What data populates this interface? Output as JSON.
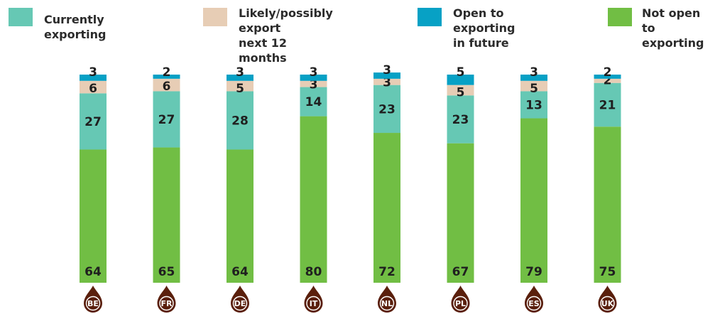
{
  "legend": [
    {
      "label": "Currently exporting",
      "color": "#66c8b4"
    },
    {
      "label": "Likely/possibly export\nnext 12 months",
      "color": "#e7cdb5"
    },
    {
      "label": "Open to exporting\nin future",
      "color": "#07a1c5"
    },
    {
      "label": "Not open\nto exporting",
      "color": "#71be44"
    }
  ],
  "chart_data": {
    "type": "bar",
    "stacked": true,
    "categories": [
      "BE",
      "FR",
      "DE",
      "IT",
      "NL",
      "PL",
      "ES",
      "UK"
    ],
    "series": [
      {
        "name": "Not open to exporting",
        "color": "#71be44",
        "values": [
          64,
          65,
          64,
          80,
          72,
          67,
          79,
          75
        ]
      },
      {
        "name": "Currently exporting",
        "color": "#66c8b4",
        "values": [
          27,
          27,
          28,
          14,
          23,
          23,
          13,
          21
        ]
      },
      {
        "name": "Likely/possibly export next 12 months",
        "color": "#e7cdb5",
        "values": [
          6,
          6,
          5,
          3,
          3,
          5,
          5,
          2
        ]
      },
      {
        "name": "Open to exporting in future",
        "color": "#07a1c5",
        "values": [
          3,
          2,
          3,
          3,
          3,
          5,
          3,
          2
        ]
      }
    ],
    "ylim": [
      0,
      100
    ],
    "grid": false,
    "legend_position": "top",
    "badge_color": "#5a1f0c"
  }
}
